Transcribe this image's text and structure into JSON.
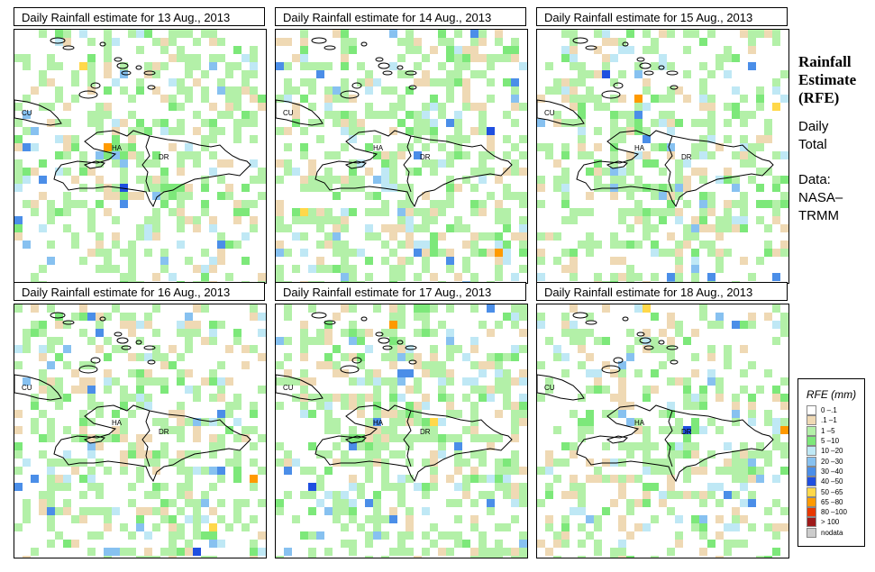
{
  "panels": [
    {
      "title": "Daily Rainfall estimate for  13 Aug., 2013",
      "seed": 13
    },
    {
      "title": "Daily Rainfall estimate for  14 Aug., 2013",
      "seed": 14
    },
    {
      "title": "Daily Rainfall estimate for  15 Aug., 2013",
      "seed": 15
    },
    {
      "title": "Daily Rainfall estimate for  16 Aug., 2013",
      "seed": 16
    },
    {
      "title": "Daily Rainfall estimate for  17 Aug., 2013",
      "seed": 17
    },
    {
      "title": "Daily Rainfall estimate for  18 Aug., 2013",
      "seed": 18
    }
  ],
  "map_labels": {
    "cuba": "CU",
    "haiti": "HA",
    "dominican_republic": "DR"
  },
  "side": {
    "title_line1": "Rainfall",
    "title_line2": "Estimate",
    "title_line3": "(RFE)",
    "daily_line1": "Daily",
    "daily_line2": "Total",
    "data_line1": "Data:",
    "data_line2": "NASA–",
    "data_line3": "TRMM"
  },
  "legend": {
    "title": "RFE (mm)",
    "items": [
      {
        "label": "0 –.1",
        "color": "#ffffff"
      },
      {
        "label": ".1 –1",
        "color": "#efd9b4"
      },
      {
        "label": "1 –5",
        "color": "#b3f0a8"
      },
      {
        "label": "5 –10",
        "color": "#7de87a"
      },
      {
        "label": "10 –20",
        "color": "#bfe8f5"
      },
      {
        "label": "20 –30",
        "color": "#87c1f0"
      },
      {
        "label": "30 –40",
        "color": "#4b8ee8"
      },
      {
        "label": "40 –50",
        "color": "#1f4fe0"
      },
      {
        "label": "50 –65",
        "color": "#ffd84a"
      },
      {
        "label": "65 –80",
        "color": "#ff9a00"
      },
      {
        "label": "80 –100",
        "color": "#e83800"
      },
      {
        "label": "> 100",
        "color": "#9e1a1a"
      },
      {
        "label": "nodata",
        "color": "#cccccc"
      }
    ]
  }
}
